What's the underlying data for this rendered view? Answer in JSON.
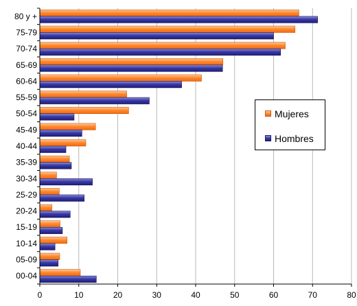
{
  "chart_data": {
    "type": "bar",
    "orientation": "horizontal",
    "title": "",
    "xlabel": "",
    "ylabel": "",
    "xlim": [
      0,
      80
    ],
    "x_ticks": [
      "0",
      "10",
      "20",
      "30",
      "40",
      "50",
      "60",
      "70",
      "80"
    ],
    "categories": [
      "80 y +",
      "75-79",
      "70-74",
      "65-69",
      "60-64",
      "55-59",
      "50-54",
      "45-49",
      "40-44",
      "35-39",
      "30-34",
      "25-29",
      "20-24",
      "15-19",
      "10-14",
      "05-09",
      "00-04"
    ],
    "series": [
      {
        "name": "Mujeres",
        "color": "#ff7f1e",
        "values": [
          66.5,
          65.5,
          63,
          47,
          41.5,
          22.3,
          22.8,
          14.3,
          11.8,
          7.6,
          4.3,
          5,
          3.1,
          5.2,
          7,
          5.1,
          10.4
        ]
      },
      {
        "name": "Hombres",
        "color": "#2b2b8c",
        "values": [
          71.3,
          60,
          61.8,
          46.9,
          36.4,
          28.1,
          8.8,
          10.8,
          6.7,
          8.1,
          13.5,
          11.4,
          7.8,
          5.8,
          3.9,
          4.7,
          14.5
        ]
      }
    ],
    "grid": "vertical",
    "legend_position": "right"
  }
}
